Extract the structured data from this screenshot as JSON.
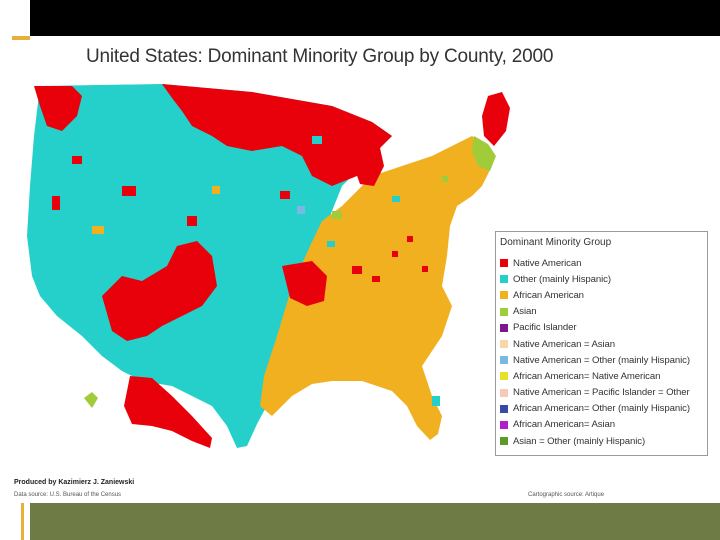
{
  "title": "United States: Dominant Minority Group by County, 2000",
  "legend": {
    "title": "Dominant Minority Group",
    "items": [
      {
        "label": "Native American",
        "color": "#e8000a"
      },
      {
        "label": "Other (mainly Hispanic)",
        "color": "#24d0c9"
      },
      {
        "label": "African American",
        "color": "#f0b020"
      },
      {
        "label": "Asian",
        "color": "#a0cc3a"
      },
      {
        "label": "Pacific Islander",
        "color": "#7a1a8a"
      },
      {
        "label": "Native American = Asian",
        "color": "#f7d5a8"
      },
      {
        "label": "Native American = Other (mainly Hispanic)",
        "color": "#7ab8e0"
      },
      {
        "label": "African American= Native American",
        "color": "#e3e32a"
      },
      {
        "label": "Native American = Pacific Islander = Other",
        "color": "#f8c8b8"
      },
      {
        "label": "African American= Other (mainly Hispanic)",
        "color": "#3a4aa0"
      },
      {
        "label": "African American= Asian",
        "color": "#b020c8"
      },
      {
        "label": "Asian = Other (mainly Hispanic)",
        "color": "#5a9a2a"
      }
    ]
  },
  "credit": "Produced by Kazimierz J. Zaniewski",
  "data_source": "Data source: U.S. Bureau of the Census",
  "cartographic_source": "Cartographic source: Artique",
  "colors": {
    "top_bar": "#000000",
    "bottom_band": "#6e7b44",
    "corner_line": "#e8b03b",
    "map_background": "#ffffff"
  }
}
